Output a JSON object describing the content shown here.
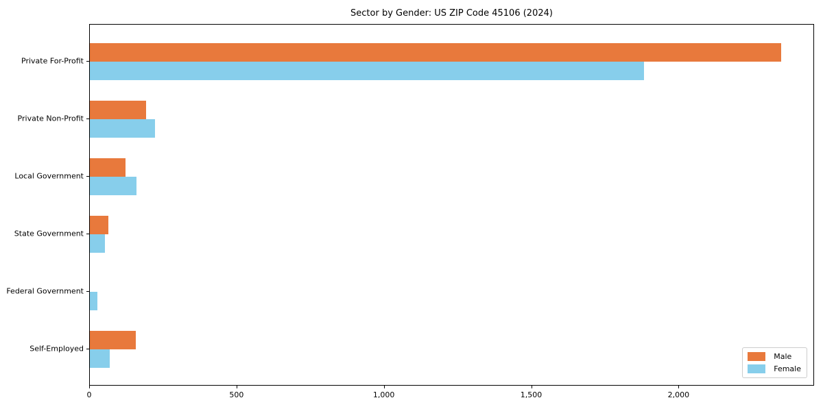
{
  "chart_data": {
    "type": "bar",
    "orientation": "horizontal",
    "title": "Sector by Gender: US ZIP Code 45106 (2024)",
    "categories": [
      "Private For-Profit",
      "Private Non-Profit",
      "Local Government",
      "State Government",
      "Federal Government",
      "Self-Employed"
    ],
    "series": [
      {
        "name": "Male",
        "color": "#E8793C",
        "values": [
          2345,
          190,
          122,
          62,
          0,
          156
        ]
      },
      {
        "name": "Female",
        "color": "#87CEEB",
        "values": [
          1880,
          220,
          158,
          52,
          25,
          68
        ]
      }
    ],
    "xlabel": "",
    "ylabel": "",
    "xlim": [
      0,
      2460
    ],
    "x_ticks": [
      0,
      500,
      1000,
      1500,
      2000
    ],
    "x_tick_labels": [
      "0",
      "500",
      "1,000",
      "1,500",
      "2,000"
    ],
    "grid": false,
    "legend": {
      "position": "lower right"
    },
    "colors": {
      "male": "#E8793C",
      "female": "#87CEEB",
      "frame": "#000000",
      "legend_border": "#cccccc"
    }
  }
}
